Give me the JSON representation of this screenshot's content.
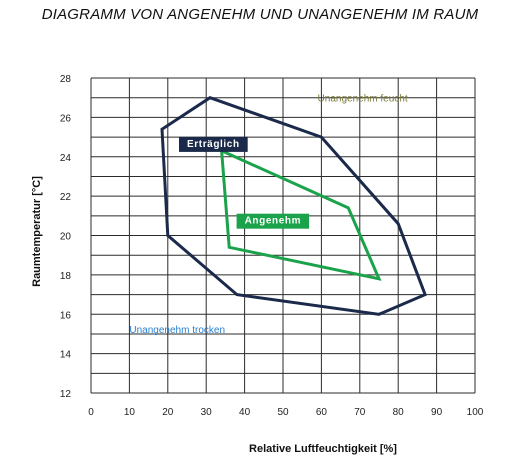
{
  "chart_data": {
    "type": "scatter",
    "title": "DIAGRAMM VON ANGENEHM UND UNANGENEHM IM RAUM",
    "xlabel": "Relative Luftfeuchtigkeit   [%]",
    "ylabel": "Raumtemperatur [°C]",
    "xlim": [
      0,
      100
    ],
    "ylim": [
      12,
      28
    ],
    "x_ticks": [
      "0",
      "10",
      "20",
      "30",
      "40",
      "50",
      "60",
      "70",
      "80",
      "90",
      "100"
    ],
    "y_ticks": [
      "12",
      "14",
      "16",
      "18",
      "20",
      "22",
      "24",
      "26",
      "28"
    ],
    "grid": true,
    "series": [
      {
        "name": "Erträglich",
        "color": "#1b2a4a",
        "points": [
          {
            "x": 18.5,
            "y": 25.4
          },
          {
            "x": 31,
            "y": 27
          },
          {
            "x": 60,
            "y": 25
          },
          {
            "x": 80,
            "y": 20.6
          },
          {
            "x": 87,
            "y": 17
          },
          {
            "x": 75,
            "y": 16
          },
          {
            "x": 38,
            "y": 17
          },
          {
            "x": 20,
            "y": 20
          }
        ]
      },
      {
        "name": "Angenehm",
        "color": "#1aa34a",
        "points": [
          {
            "x": 34,
            "y": 24.3
          },
          {
            "x": 67,
            "y": 21.4
          },
          {
            "x": 75,
            "y": 17.8
          },
          {
            "x": 36,
            "y": 19.4
          }
        ]
      }
    ],
    "annotations": [
      {
        "text": "Unangenehm feucht",
        "x": 59,
        "y": 26.8,
        "color": "#7a7a3a"
      },
      {
        "text": "Erträglich",
        "x": 25,
        "y": 24.5,
        "color": "#ffffff",
        "background": "#1b2a4a"
      },
      {
        "text": "Angenehm",
        "x": 40,
        "y": 20.6,
        "color": "#ffffff",
        "background": "#1aa34a"
      },
      {
        "text": "Unangenehm trocken",
        "x": 10,
        "y": 15.05,
        "color": "#2a7fd0"
      }
    ]
  }
}
